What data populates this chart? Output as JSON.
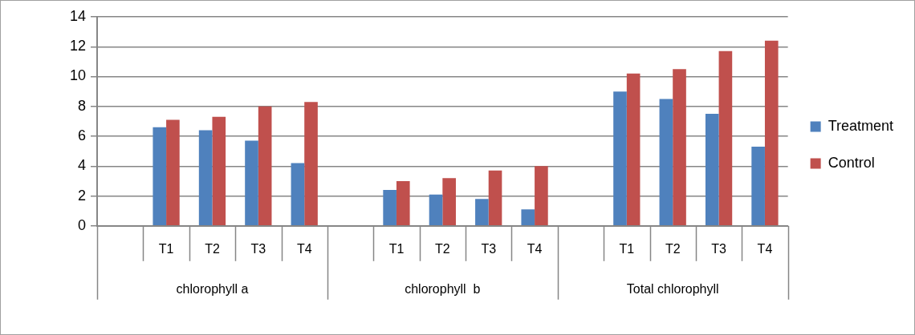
{
  "chart_data": {
    "type": "bar",
    "categories": [
      null,
      "T1",
      "T2",
      "T3",
      "T4",
      null,
      "T1",
      "T2",
      "T3",
      "T4",
      null,
      "T1",
      "T2",
      "T3",
      "T4"
    ],
    "series": [
      {
        "name": "Treatment",
        "color": "#4f81bd",
        "values": [
          null,
          6.6,
          6.4,
          5.7,
          4.2,
          null,
          2.4,
          2.1,
          1.8,
          1.1,
          null,
          9.0,
          8.5,
          7.5,
          5.3
        ]
      },
      {
        "name": "Control",
        "color": "#c0504d",
        "values": [
          null,
          7.1,
          7.3,
          8.0,
          8.3,
          null,
          3.0,
          3.2,
          3.7,
          4.0,
          null,
          10.2,
          10.5,
          11.7,
          12.4
        ]
      }
    ],
    "annotations": [
      "chlorophyll a",
      "chlorophyll  b",
      "Total chlorophyll"
    ],
    "ylim": [
      0,
      14
    ],
    "yticks": [
      0,
      2,
      4,
      6,
      8,
      10,
      12,
      14
    ],
    "grid": "y",
    "legend": "right"
  }
}
